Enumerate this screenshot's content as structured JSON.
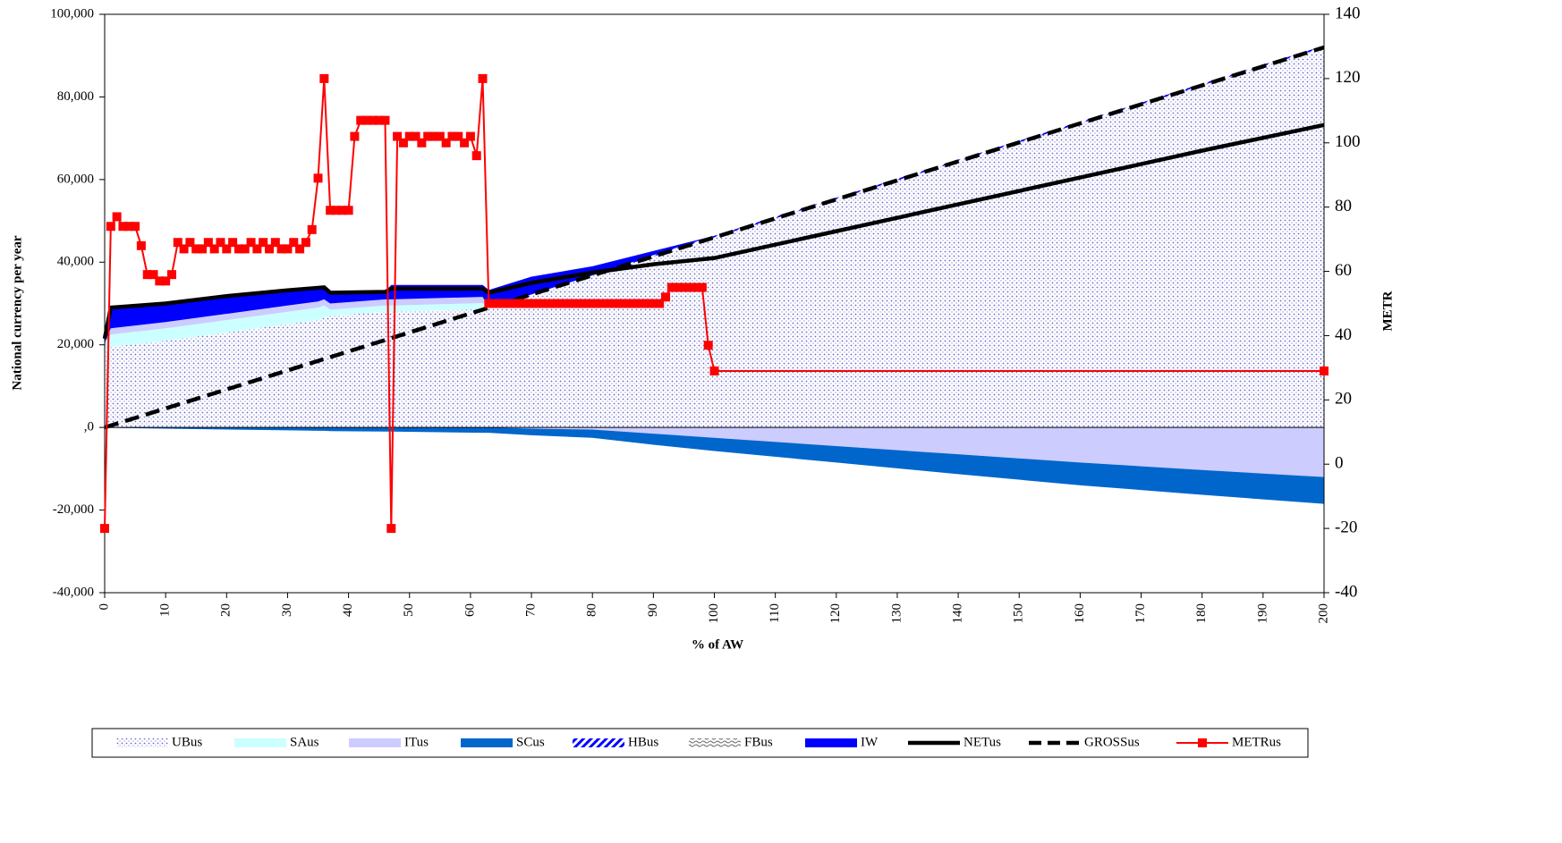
{
  "chart_data": {
    "type": "area",
    "x_label": "% of AW",
    "y_label": "National currency per year",
    "y2_label": "METR",
    "x": [
      0,
      1,
      10,
      20,
      30,
      35,
      36,
      37,
      46,
      47,
      62,
      63,
      70,
      80,
      90,
      100,
      120,
      140,
      160,
      180,
      200
    ],
    "xlim": [
      0,
      200
    ],
    "xticks": [
      0,
      10,
      20,
      30,
      40,
      50,
      60,
      70,
      80,
      90,
      100,
      110,
      120,
      130,
      140,
      150,
      160,
      170,
      180,
      190,
      200
    ],
    "ylim": [
      -40000,
      100000
    ],
    "yticks": [
      {
        "value": 100000,
        "label": "100,000"
      },
      {
        "value": 80000,
        "label": "80,000"
      },
      {
        "value": 60000,
        "label": "60,000"
      },
      {
        "value": 40000,
        "label": "40,000"
      },
      {
        "value": 20000,
        "label": "20,000"
      },
      {
        "value": 0,
        "label": ",0"
      },
      {
        "value": -20000,
        "label": "-20,000"
      },
      {
        "value": -40000,
        "label": "-40,000"
      }
    ],
    "y2lim": [
      -40,
      140
    ],
    "y2ticks": [
      140,
      120,
      100,
      80,
      60,
      40,
      20,
      0,
      -20,
      -40
    ],
    "legend": "bottom",
    "series": [
      {
        "name": "UBus",
        "kind": "area",
        "fill": "dots",
        "color": "#6666cc",
        "values": [
          19000,
          19500,
          21000,
          23000,
          25000,
          26000,
          26500,
          27000,
          28000,
          28000,
          28600,
          28980,
          32200,
          36800,
          41400,
          46000,
          55200,
          64400,
          73600,
          82800,
          92000
        ]
      },
      {
        "name": "SAus",
        "kind": "area",
        "fill": "solid",
        "color": "#ccffff",
        "values": [
          1000,
          3000,
          3000,
          3000,
          3000,
          3000,
          3000,
          1500,
          1500,
          1500,
          1500,
          0,
          0,
          0,
          0,
          0,
          0,
          0,
          0,
          0,
          0
        ]
      },
      {
        "name": "ITus",
        "kind": "area",
        "fill": "solid",
        "color": "#ccccff",
        "values": [
          500,
          1500,
          1500,
          1500,
          1500,
          1500,
          1500,
          1500,
          1500,
          1500,
          1500,
          0,
          -300,
          -500,
          -1500,
          -2500,
          -4500,
          -6500,
          -8500,
          -10300,
          -12000
        ]
      },
      {
        "name": "SCus",
        "kind": "area",
        "fill": "solid",
        "color": "#0066cc",
        "values": [
          0,
          -100,
          -300,
          -500,
          -700,
          -800,
          -800,
          -900,
          -1000,
          -1000,
          -1300,
          -1300,
          -1600,
          -2000,
          -2700,
          -3200,
          -4000,
          -4800,
          -5500,
          -6000,
          -6500
        ]
      },
      {
        "name": "HBus",
        "kind": "area",
        "fill": "hatch",
        "color": "#0000ff",
        "values": [
          0,
          0,
          0,
          0,
          0,
          0,
          0,
          0,
          0,
          0,
          0,
          0,
          0,
          0,
          300,
          400,
          400,
          400,
          400,
          400,
          400
        ]
      },
      {
        "name": "FBus",
        "kind": "area",
        "fill": "waves",
        "color": "#666666",
        "values": [
          0,
          0,
          0,
          0,
          0,
          0,
          0,
          0,
          0,
          0,
          0,
          0,
          0,
          0,
          0,
          0,
          0,
          0,
          0,
          0,
          0
        ]
      },
      {
        "name": "IW",
        "kind": "area",
        "fill": "solid",
        "color": "#0000ff",
        "values": [
          1000,
          5000,
          4500,
          4300,
          3700,
          3300,
          2900,
          2600,
          1800,
          3500,
          2900,
          4300,
          4300,
          2200,
          1000,
          0,
          0,
          0,
          0,
          0,
          0
        ]
      },
      {
        "name": "NETus",
        "kind": "line",
        "dash": "solid",
        "color": "#000000",
        "values": [
          21500,
          29000,
          30000,
          31800,
          33200,
          33800,
          33900,
          32600,
          32800,
          33600,
          33600,
          32600,
          35000,
          37500,
          39500,
          41000,
          47500,
          54000,
          60500,
          67000,
          73200
        ]
      },
      {
        "name": "GROSSus",
        "kind": "line",
        "dash": "dashed",
        "color": "#000000",
        "values": [
          0,
          460,
          4600,
          9200,
          13800,
          16100,
          16560,
          17020,
          21160,
          21620,
          28520,
          28980,
          32200,
          36800,
          41400,
          46000,
          55200,
          64400,
          73600,
          82800,
          92000
        ]
      },
      {
        "name": "METRus",
        "kind": "line",
        "dash": "solid",
        "marker": "square",
        "axis": "y2",
        "color": "#ff0000",
        "x": [
          0,
          1,
          2,
          3,
          4,
          5,
          6,
          7,
          8,
          9,
          10,
          11,
          12,
          13,
          14,
          15,
          16,
          17,
          18,
          19,
          20,
          21,
          22,
          23,
          24,
          25,
          26,
          27,
          28,
          29,
          30,
          31,
          32,
          33,
          34,
          35,
          36,
          37,
          38,
          39,
          40,
          41,
          42,
          43,
          44,
          45,
          46,
          47,
          48,
          49,
          50,
          51,
          52,
          53,
          54,
          55,
          56,
          57,
          58,
          59,
          60,
          61,
          62,
          63,
          64,
          65,
          66,
          67,
          68,
          69,
          70,
          71,
          72,
          73,
          74,
          75,
          76,
          77,
          78,
          79,
          80,
          81,
          82,
          83,
          84,
          85,
          86,
          87,
          88,
          89,
          90,
          91,
          92,
          93,
          94,
          95,
          96,
          97,
          98,
          99,
          100,
          200
        ],
        "values": [
          -20,
          74,
          77,
          74,
          74,
          74,
          68,
          59,
          59,
          57,
          57,
          59,
          69,
          67,
          69,
          67,
          67,
          69,
          67,
          69,
          67,
          69,
          67,
          67,
          69,
          67,
          69,
          67,
          69,
          67,
          67,
          69,
          67,
          69,
          73,
          89,
          120,
          79,
          79,
          79,
          79,
          102,
          107,
          107,
          107,
          107,
          107,
          -20,
          102,
          100,
          102,
          102,
          100,
          102,
          102,
          102,
          100,
          102,
          102,
          100,
          102,
          96,
          120,
          50,
          50,
          50,
          50,
          50,
          50,
          50,
          50,
          50,
          50,
          50,
          50,
          50,
          50,
          50,
          50,
          50,
          50,
          50,
          50,
          50,
          50,
          50,
          50,
          50,
          50,
          50,
          50,
          50,
          52,
          55,
          55,
          55,
          55,
          55,
          55,
          37,
          29,
          29
        ]
      }
    ]
  }
}
